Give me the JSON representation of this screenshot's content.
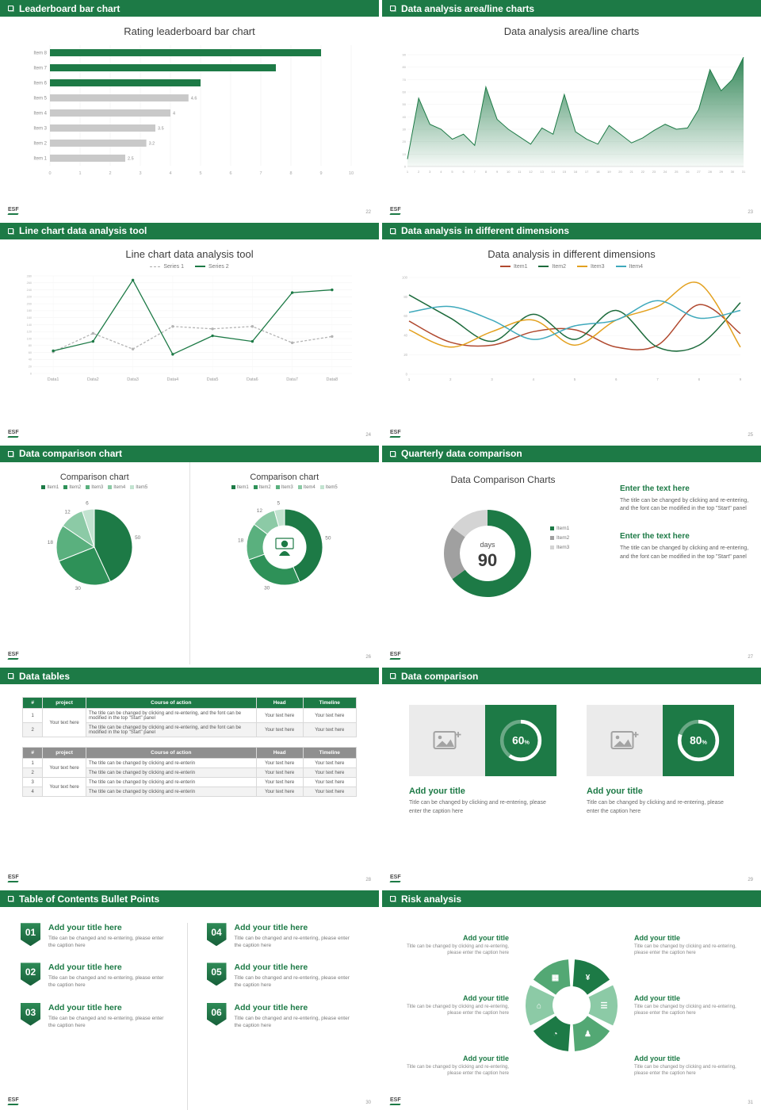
{
  "theme": {
    "green": "#1d7a46",
    "green_mid": "#2e9158",
    "green_light": "#8ccaa6",
    "gray_bar": "#c9c9c9",
    "red": "#b0492f",
    "orange": "#e3a11f",
    "teal": "#3fa9bc"
  },
  "logo": "ESF",
  "slides": {
    "s1": {
      "header": "Leaderboard bar chart",
      "page": "22",
      "chart_data": {
        "type": "bar",
        "title": "Rating leaderboard bar chart",
        "categories": [
          "Item 1",
          "Item 2",
          "Item 3",
          "Item 4",
          "Item 5",
          "Item 6",
          "Item 7",
          "Item 8"
        ],
        "values": [
          2.5,
          3.2,
          3.5,
          4,
          4.6,
          5,
          7.5,
          9
        ],
        "labels": [
          "2.5",
          "3.2",
          "3.5",
          "4",
          "4.6",
          "",
          "",
          ""
        ],
        "colors": [
          "gray",
          "gray",
          "gray",
          "gray",
          "gray",
          "green",
          "green",
          "green"
        ],
        "xlim": [
          0,
          10
        ],
        "xticks": [
          0,
          1,
          2,
          3,
          4,
          5,
          6,
          7,
          8,
          9,
          10
        ]
      }
    },
    "s2": {
      "header": "Data analysis area/line charts",
      "page": "23",
      "chart_data": {
        "type": "area",
        "title": "Data analysis area/line charts",
        "x": [
          1,
          2,
          3,
          4,
          5,
          6,
          7,
          8,
          9,
          10,
          11,
          12,
          13,
          14,
          15,
          16,
          17,
          18,
          19,
          20,
          21,
          22,
          23,
          24,
          25,
          26,
          27,
          28,
          29,
          30,
          31
        ],
        "values": [
          6,
          55,
          34,
          30,
          22,
          26,
          17,
          64,
          38,
          30,
          24,
          18,
          31,
          26,
          58,
          28,
          22,
          18,
          33,
          26,
          19,
          23,
          29,
          34,
          30,
          31,
          46,
          78,
          61,
          70,
          88
        ],
        "ylim": [
          0,
          90
        ],
        "yticks": [
          0,
          10,
          20,
          30,
          40,
          50,
          60,
          70,
          80,
          90
        ]
      }
    },
    "s3": {
      "header": "Line chart data analysis tool",
      "page": "24",
      "chart_data": {
        "type": "line",
        "title": "Line chart data analysis tool",
        "categories": [
          "Data1",
          "Data2",
          "Data3",
          "Data4",
          "Data5",
          "Data6",
          "Data7",
          "Data8"
        ],
        "series": [
          {
            "name": "Series 1",
            "color": "#b3b3b3",
            "dash": true,
            "values": [
              62,
              115,
              70,
              135,
              128,
              135,
              88,
              106
            ]
          },
          {
            "name": "Series 2",
            "color": "#1d7a46",
            "dash": false,
            "values": [
              65,
              92,
              268,
              55,
              108,
              92,
              232,
              240
            ]
          }
        ],
        "ylim": [
          0,
          280
        ],
        "ytick_step": 20
      }
    },
    "s4": {
      "header": "Data analysis in different dimensions",
      "page": "25",
      "chart_data": {
        "type": "line",
        "title": "Data analysis in different dimensions",
        "x": [
          1,
          2,
          3,
          4,
          5,
          6,
          7,
          8,
          9
        ],
        "series": [
          {
            "name": "Item1",
            "color": "#b0492f",
            "values": [
              55,
              33,
              30,
              44,
              46,
              28,
              30,
              72,
              42
            ]
          },
          {
            "name": "Item2",
            "color": "#1d6b3c",
            "values": [
              82,
              58,
              34,
              62,
              36,
              66,
              28,
              30,
              74
            ]
          },
          {
            "name": "Item3",
            "color": "#e3a11f",
            "values": [
              46,
              28,
              44,
              56,
              30,
              56,
              70,
              94,
              28
            ]
          },
          {
            "name": "Item4",
            "color": "#3fa9bc",
            "values": [
              64,
              70,
              56,
              36,
              50,
              56,
              76,
              58,
              66
            ]
          }
        ],
        "ylim": [
          0,
          100
        ],
        "yticks": [
          0,
          20,
          40,
          60,
          80,
          100
        ]
      }
    },
    "s5": {
      "header": "Data comparison chart",
      "page": "26",
      "legend": [
        "Item1",
        "Item2",
        "Item3",
        "Item4",
        "Item5"
      ],
      "colors": [
        "#1d7a46",
        "#2e9158",
        "#5ab07e",
        "#8ccaa6",
        "#c2e3d0"
      ],
      "left": {
        "type": "pie",
        "title": "Comparison chart",
        "values": [
          50,
          30,
          18,
          12,
          6
        ]
      },
      "right": {
        "type": "donut",
        "title": "Comparison chart",
        "values": [
          50,
          30,
          18,
          12,
          5
        ]
      }
    },
    "s6": {
      "header": "Quarterly data comparison",
      "page": "27",
      "title": "Data Comparison Charts",
      "donut": {
        "type": "donut",
        "center_top": "days",
        "center_value": "90",
        "legend": [
          "Item1",
          "Item2",
          "Item3"
        ],
        "values": [
          65,
          20,
          15
        ],
        "colors": [
          "#1d7a46",
          "#a0a0a0",
          "#d4d4d4"
        ]
      },
      "blocks": [
        {
          "heading": "Enter the text here",
          "body": "The title can be changed by clicking and re-entering, and the font can be modified in the top \"Start\" panel"
        },
        {
          "heading": "Enter the text here",
          "body": "The title can be changed by clicking and re-entering, and the font can be modified in the top \"Start\" panel"
        }
      ]
    },
    "s7": {
      "header": "Data tables",
      "page": "28",
      "table1": {
        "headers": [
          "#",
          "project",
          "Course of action",
          "Head",
          "Timeline"
        ],
        "rows": [
          [
            "1",
            "Your text here",
            "The title can be changed by clicking and re-entering, and the font can be modified in the top \"Start\" panel",
            "Your text here",
            "Your text here"
          ],
          [
            "2",
            "",
            "The title can be changed by clicking and re-entering, and the font can be modified in the top \"Start\" panel",
            "Your text here",
            "Your text here"
          ]
        ]
      },
      "table2": {
        "headers": [
          "#",
          "project",
          "Course of action",
          "Head",
          "Timeline"
        ],
        "rows": [
          [
            "1",
            "Your text here",
            "The title can be changed by clicking and re-enterin",
            "Your text here",
            "Your text here"
          ],
          [
            "2",
            "",
            "The title can be changed by clicking and re-enterin",
            "Your text here",
            "Your text here"
          ],
          [
            "3",
            "Your text here",
            "The title can be changed by clicking and re-enterin",
            "Your text here",
            "Your text here"
          ],
          [
            "4",
            "",
            "The title can be changed by clicking and re-enterin",
            "Your text here",
            "Your text here"
          ]
        ]
      }
    },
    "s8": {
      "header": "Data comparison",
      "page": "29",
      "cards": [
        {
          "percent": 60,
          "title": "Add your title",
          "caption": "Title can be changed by clicking and re-entering, please enter the caption here"
        },
        {
          "percent": 80,
          "title": "Add your title",
          "caption": "Title can be changed by clicking and re-entering, please enter the caption here"
        }
      ]
    },
    "s9": {
      "header": "Table of Contents Bullet Points",
      "page": "30",
      "items": [
        {
          "num": "01",
          "title": "Add your title here",
          "caption": "Title can be changed and re-entering, please enter the caption here"
        },
        {
          "num": "02",
          "title": "Add your title here",
          "caption": "Title can be changed and re-entering, please enter the caption here"
        },
        {
          "num": "03",
          "title": "Add your title here",
          "caption": "Title can be changed and re-entering, please enter the caption here"
        },
        {
          "num": "04",
          "title": "Add your title here",
          "caption": "Title can be changed and re-entering, please enter the caption here"
        },
        {
          "num": "05",
          "title": "Add your title here",
          "caption": "Title can be changed and re-entering, please enter the caption here"
        },
        {
          "num": "06",
          "title": "Add your title here",
          "caption": "Title can be changed and re-entering, please enter the caption here"
        }
      ]
    },
    "s10": {
      "header": "Risk analysis",
      "page": "31",
      "left_items": [
        {
          "title": "Add your title",
          "caption": "Title can be changed by clicking and re-entering, please enter the caption here"
        },
        {
          "title": "Add your title",
          "caption": "Title can be changed by clicking and re-entering, please enter the caption here"
        },
        {
          "title": "Add your title",
          "caption": "Title can be changed by clicking and re-entering, please enter the caption here"
        }
      ],
      "right_items": [
        {
          "title": "Add your title",
          "caption": "Title can be changed by clicking and re-entering, please enter the caption here"
        },
        {
          "title": "Add your title",
          "caption": "Title can be changed by clicking and re-entering, please enter the caption here"
        },
        {
          "title": "Add your title",
          "caption": "Title can be changed by clicking and re-entering, please enter the caption here"
        }
      ],
      "wheel": {
        "colors": [
          "#1d7a46",
          "#8ccaa6",
          "#53a874",
          "#1d7a46",
          "#8ccaa6",
          "#53a874"
        ],
        "icons": [
          {
            "name": "money-bag-icon",
            "glyph": "¥"
          },
          {
            "name": "coins-icon",
            "glyph": "☰"
          },
          {
            "name": "people-icon",
            "glyph": "♟"
          },
          {
            "name": "pie-chart-icon",
            "glyph": "◔"
          },
          {
            "name": "building-icon",
            "glyph": "⌂"
          },
          {
            "name": "chart-icon",
            "glyph": "▦"
          }
        ]
      }
    }
  }
}
